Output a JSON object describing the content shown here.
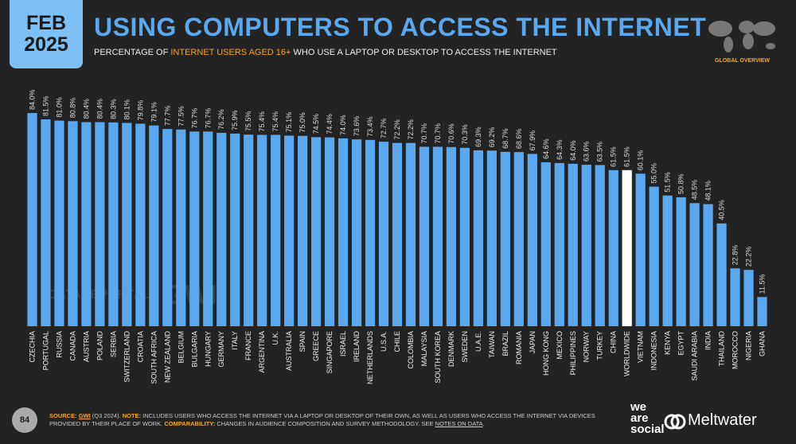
{
  "header": {
    "month": "FEB",
    "year": "2025",
    "title": "USING COMPUTERS TO ACCESS THE INTERNET",
    "subtitle": [
      "PERCENTAGE OF ",
      "INTERNET USERS AGED 16+",
      " WHO USE A LAPTOP OR DESKTOP TO ACCESS THE INTERNET"
    ],
    "badge": "GLOBAL OVERVIEW"
  },
  "watermark": [
    "DATAREPORTAL",
    "GWI."
  ],
  "chart_data": {
    "type": "bar",
    "color": "#5aa9f0",
    "highlight": "WORLDWIDE",
    "highlight_color": "#ffffff",
    "categories": [
      "CZECHIA",
      "PORTUGAL",
      "RUSSIA",
      "CANADA",
      "AUSTRIA",
      "POLAND",
      "SERBIA",
      "SWITZERLAND",
      "CROATIA",
      "SOUTH AFRICA",
      "NEW ZEALAND",
      "BELGIUM",
      "BULGARIA",
      "HUNGARY",
      "GERMANY",
      "ITALY",
      "FRANCE",
      "ARGENTINA",
      "U.K.",
      "AUSTRALIA",
      "SPAIN",
      "GREECE",
      "SINGAPORE",
      "ISRAEL",
      "IRELAND",
      "NETHERLANDS",
      "U.S.A.",
      "CHILE",
      "COLOMBIA",
      "MALAYSIA",
      "SOUTH KOREA",
      "DENMARK",
      "SWEDEN",
      "U.A.E.",
      "TAIWAN",
      "BRAZIL",
      "ROMANIA",
      "JAPAN",
      "HONG KONG",
      "MEXICO",
      "PHILIPPINES",
      "NORWAY",
      "TURKEY",
      "CHINA",
      "WORLDWIDE",
      "VIETNAM",
      "INDONESIA",
      "KENYA",
      "EGYPT",
      "SAUDI ARABIA",
      "INDIA",
      "THAILAND",
      "MOROCCO",
      "NIGERIA",
      "GHANA"
    ],
    "values": [
      84.0,
      81.5,
      81.0,
      80.8,
      80.4,
      80.4,
      80.3,
      80.1,
      79.8,
      79.1,
      77.7,
      77.5,
      76.7,
      76.7,
      76.2,
      75.9,
      75.5,
      75.4,
      75.4,
      75.1,
      75.0,
      74.5,
      74.4,
      74.0,
      73.6,
      73.4,
      72.7,
      72.2,
      72.2,
      70.7,
      70.7,
      70.6,
      70.3,
      69.3,
      69.2,
      68.7,
      68.6,
      67.9,
      64.6,
      64.3,
      64.0,
      63.6,
      63.5,
      61.5,
      61.5,
      60.1,
      55.0,
      51.5,
      50.8,
      48.5,
      48.1,
      40.5,
      22.8,
      22.2,
      11.5
    ],
    "value_labels": [
      "84.0%",
      "81.5%",
      "81.0%",
      "80.8%",
      "80.4%",
      "80.4%",
      "80.3%",
      "80.1%",
      "79.8%",
      "79.1%",
      "77.7%",
      "77.5%",
      "76.7%",
      "76.7%",
      "76.2%",
      "75.9%",
      "75.5%",
      "75.4%",
      "75.4%",
      "75.1%",
      "75.0%",
      "74.5%",
      "74.4%",
      "74.0%",
      "73.6%",
      "73.4%",
      "72.7%",
      "72.2%",
      "72.2%",
      "70.7%",
      "70.7%",
      "70.6%",
      "70.3%",
      "69.3%",
      "69.2%",
      "68.7%",
      "68.6%",
      "67.9%",
      "64.6%",
      "64.3%",
      "64.0%",
      "63.6%",
      "63.5%",
      "61.5%",
      "61.5%",
      "60.1%",
      "55.0%",
      "51.5%",
      "50.8%",
      "48.5%",
      "48.1%",
      "40.5%",
      "22.8%",
      "22.2%",
      "11.5%"
    ]
  },
  "footer": {
    "page": "84",
    "source": [
      "SOURCE:",
      "GWI",
      " (Q3 2024). ",
      "NOTE:",
      " INCLUDES USERS WHO ACCESS THE INTERNET VIA A LAPTOP OR DESKTOP OF THEIR OWN, AS WELL AS USERS WHO ACCESS THE INTERNET VIA DEVICES PROVIDED BY THEIR PLACE OF WORK. ",
      "COMPARABILITY:",
      " CHANGES IN AUDIENCE COMPOSITION AND SURVEY METHODOLOGY. SEE ",
      "NOTES ON DATA",
      "."
    ],
    "brand1": [
      "we",
      "are",
      "social"
    ],
    "brand2": "Meltwater"
  }
}
